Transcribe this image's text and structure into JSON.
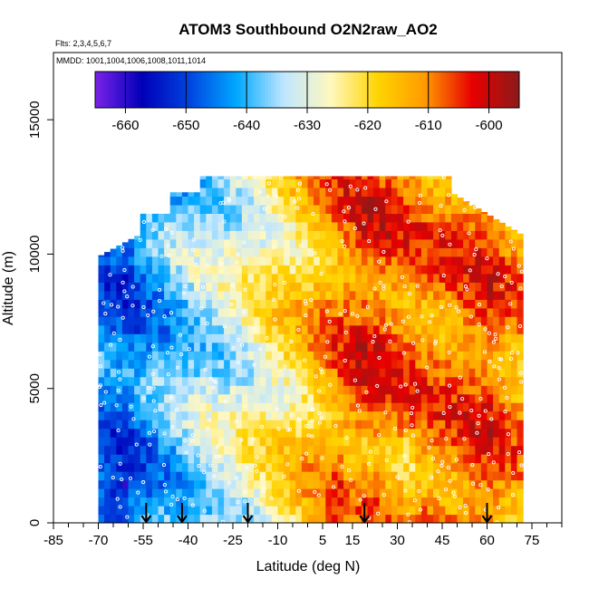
{
  "chart_data": {
    "type": "heatmap",
    "title": "ATOM3 Southbound O2N2raw_AO2",
    "flights_note": "Flts: 2,3,4,5,6,7",
    "dates_note": "MMDD: 1001,1004,1006,1008,1011,1014",
    "xlabel": "Latitude (deg N)",
    "ylabel": "Altitude (m)",
    "xlim": [
      -85,
      85
    ],
    "ylim": [
      0,
      17500
    ],
    "x_tick_labels": [
      "-85",
      "-70",
      "-55",
      "-40",
      "-25",
      "-10",
      "5",
      "15",
      "30",
      "45",
      "60",
      "75"
    ],
    "x_ticks": [
      -85,
      -70,
      -55,
      -40,
      -25,
      -10,
      5,
      15,
      30,
      45,
      60,
      75
    ],
    "x_minor_ticks": [
      -80,
      -75,
      -65,
      -60,
      -50,
      -45,
      -35,
      -30,
      -20,
      -15,
      -5,
      0,
      10,
      20,
      25,
      35,
      40,
      50,
      55,
      65,
      70,
      80,
      85
    ],
    "y_tick_labels": [
      "0",
      "5000",
      "10000",
      "15000"
    ],
    "y_ticks": [
      0,
      5000,
      10000,
      15000
    ],
    "colorbar": {
      "range": [
        -665,
        -595
      ],
      "tick_labels": [
        "-660",
        "-650",
        "-640",
        "-630",
        "-620",
        "-610",
        "-600"
      ],
      "ticks": [
        -660,
        -650,
        -640,
        -630,
        -620,
        -610,
        -600
      ],
      "placement": "top",
      "colors": [
        "#7a22e8",
        "#0000b8",
        "#0044e0",
        "#00a8ff",
        "#bfe6ff",
        "#fff8c0",
        "#ffd400",
        "#ff9a00",
        "#e80000",
        "#8b1a1a"
      ]
    },
    "arrows_latitude": [
      -54,
      -42,
      -20,
      19,
      60
    ],
    "data_region": {
      "lat_range": [
        -70,
        72
      ],
      "alt_range": [
        0,
        12900
      ],
      "value_range": [
        -662,
        -596
      ]
    },
    "value_profile": [
      {
        "lat": -70,
        "value": -645
      },
      {
        "lat": -60,
        "value": -648
      },
      {
        "lat": -50,
        "value": -641
      },
      {
        "lat": -40,
        "value": -636
      },
      {
        "lat": -30,
        "value": -632
      },
      {
        "lat": -20,
        "value": -628
      },
      {
        "lat": -10,
        "value": -622
      },
      {
        "lat": 0,
        "value": -617
      },
      {
        "lat": 10,
        "value": -610
      },
      {
        "lat": 20,
        "value": -605
      },
      {
        "lat": 30,
        "value": -608
      },
      {
        "lat": 40,
        "value": -610
      },
      {
        "lat": 50,
        "value": -609
      },
      {
        "lat": 60,
        "value": -606
      },
      {
        "lat": 70,
        "value": -612
      }
    ]
  }
}
